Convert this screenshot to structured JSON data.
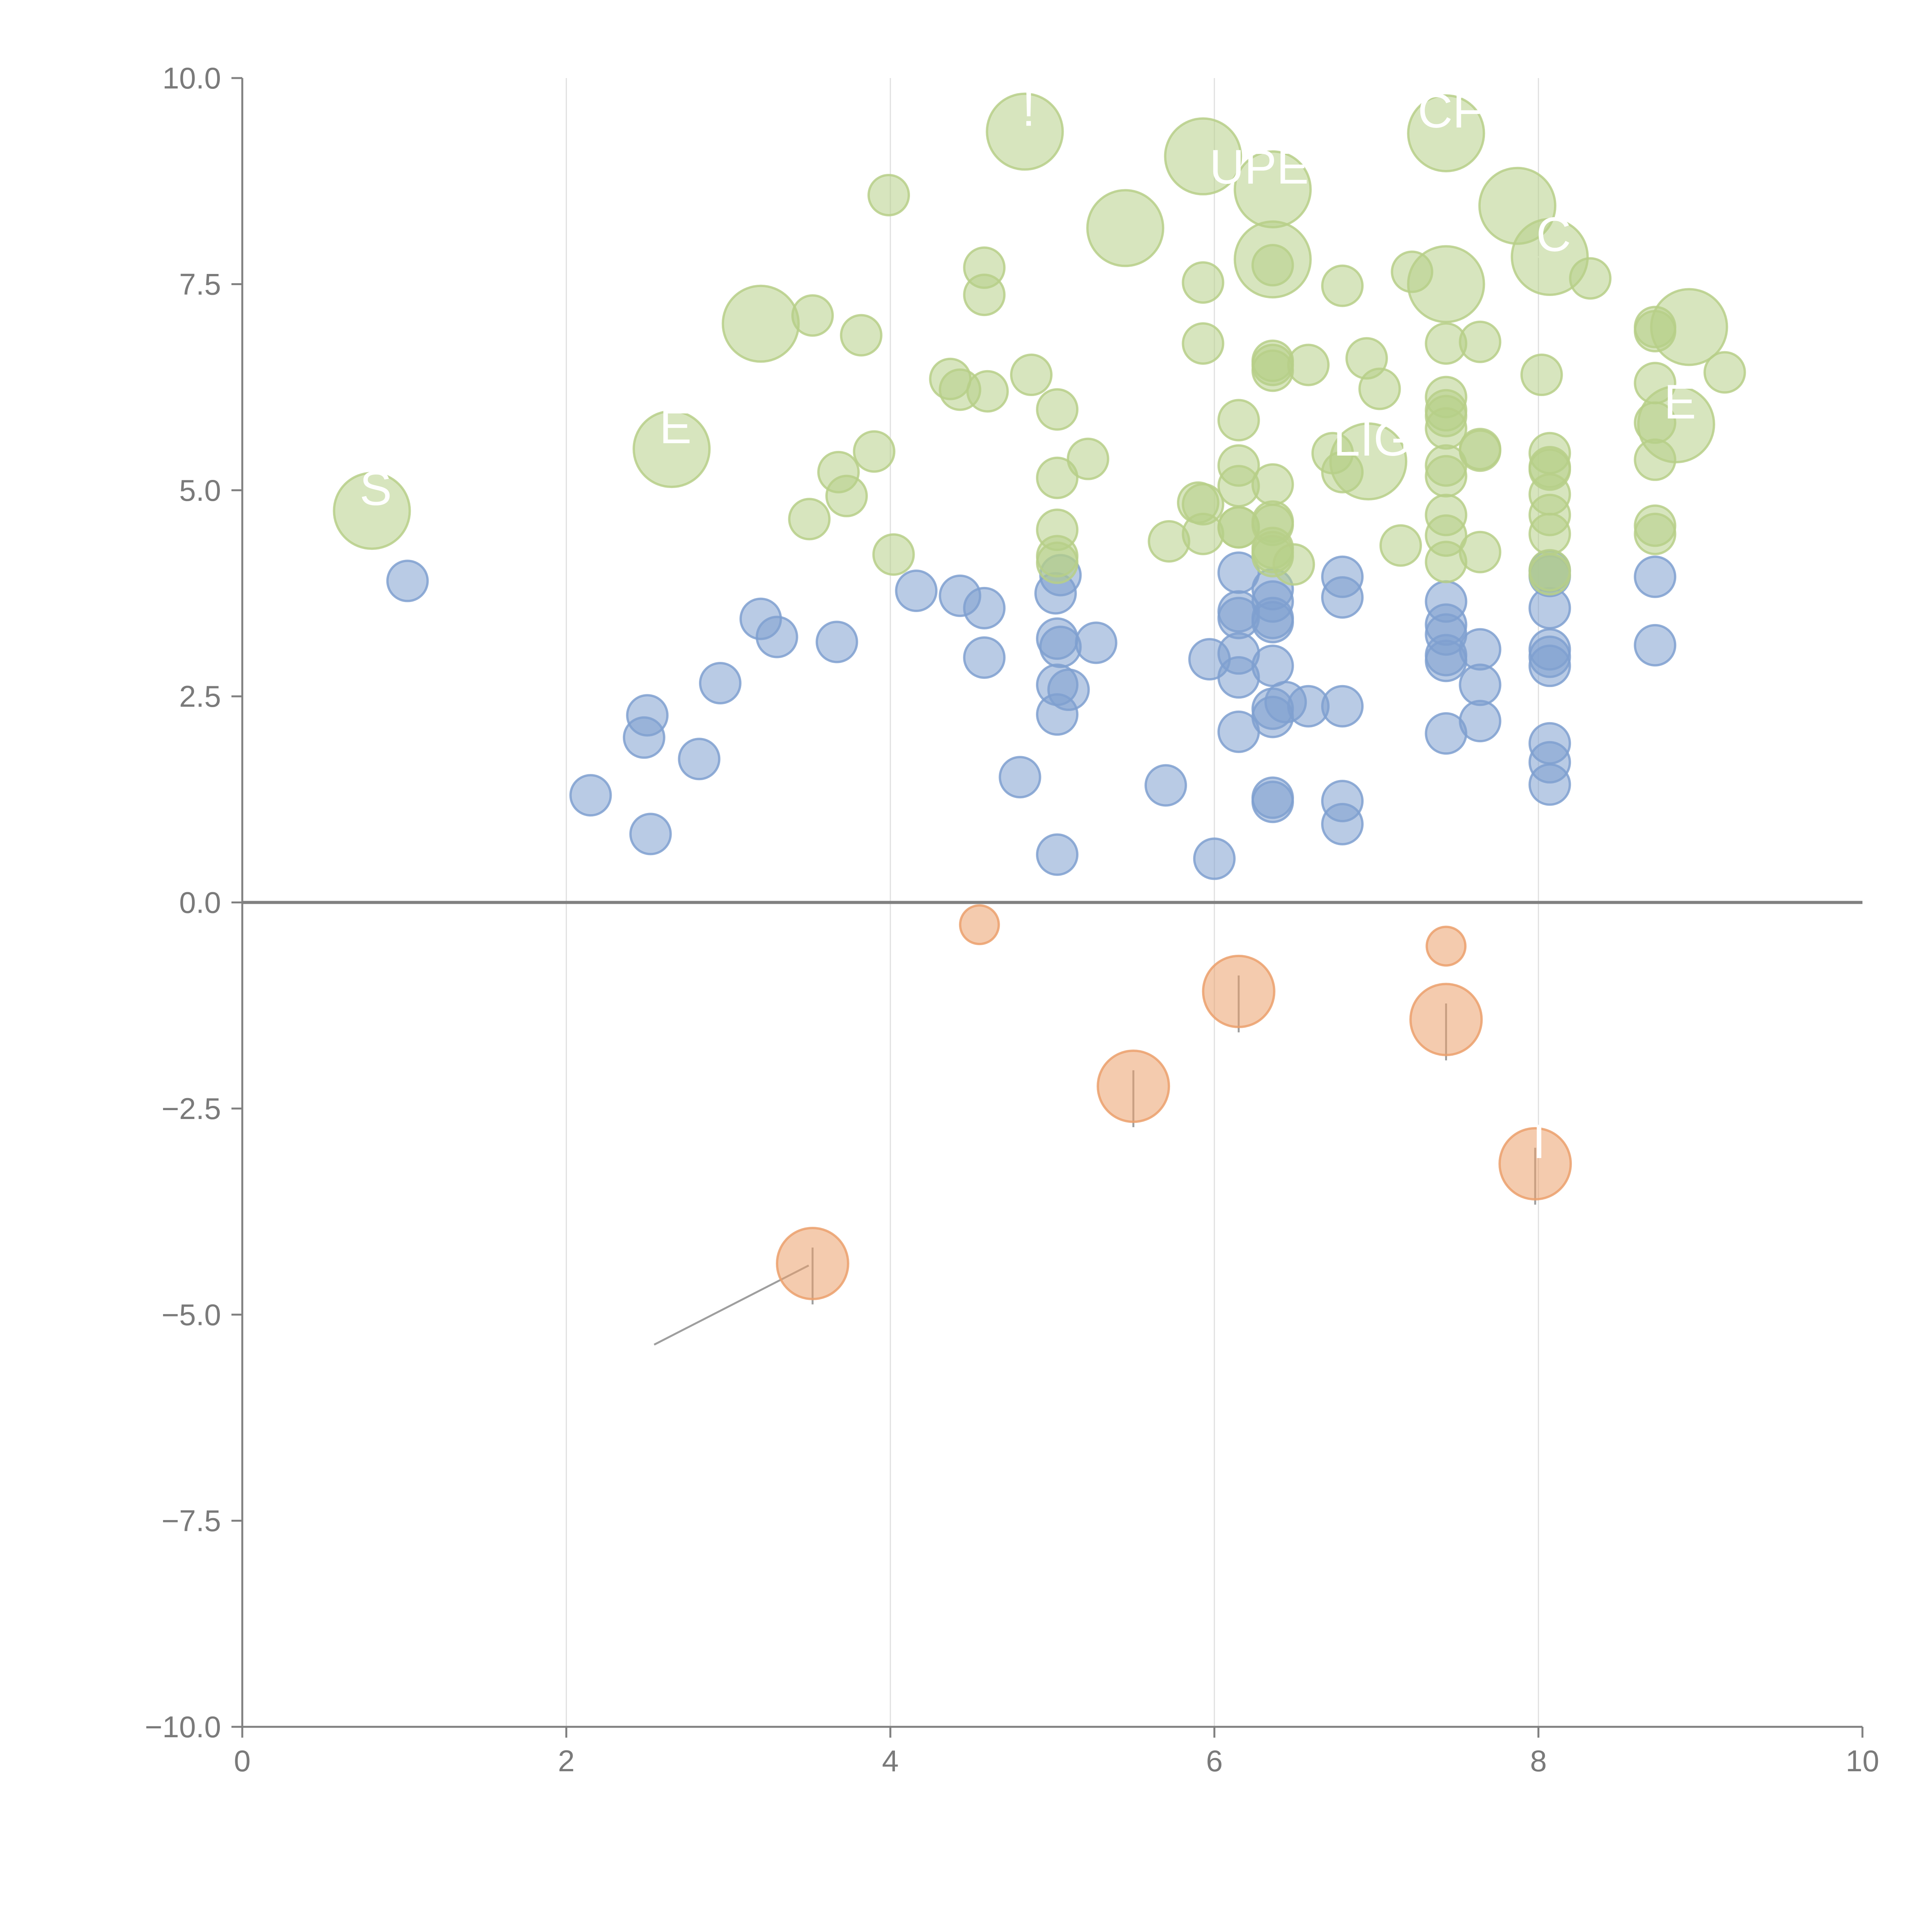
{
  "chart_data": {
    "type": "scatter",
    "title": "",
    "xlabel": "",
    "ylabel": "",
    "xlim": [
      0,
      10
    ],
    "ylim": [
      -10,
      10
    ],
    "grid": "vertical",
    "x_ticks": [
      "0",
      "2",
      "4",
      "6",
      "8",
      "10"
    ],
    "y_ticks": [
      "10.0",
      "7.5",
      "5.0",
      "2.5",
      "0.0",
      "−2.5",
      "−5.0",
      "−7.5",
      "−10.0"
    ],
    "colors": {
      "blue": "#7fa0d0",
      "green": "#b7cf88",
      "orange": "#eba06c",
      "axis": "#808080",
      "grid": "#e0e0e0",
      "leader": "#9e9e9e"
    },
    "series": [
      {
        "name": "blue",
        "points": [
          [
            1.02,
            3.9
          ],
          [
            2.15,
            1.3
          ],
          [
            2.5,
            2.27
          ],
          [
            2.48,
            2.0
          ],
          [
            2.52,
            0.83
          ],
          [
            2.82,
            1.74
          ],
          [
            2.95,
            2.66
          ],
          [
            3.2,
            3.44
          ],
          [
            3.3,
            3.22
          ],
          [
            3.67,
            3.16
          ],
          [
            4.16,
            3.78
          ],
          [
            4.43,
            3.72
          ],
          [
            4.58,
            3.57
          ],
          [
            4.58,
            2.97
          ],
          [
            4.8,
            1.52
          ],
          [
            5.02,
            3.75
          ],
          [
            5.05,
            3.97
          ],
          [
            5.03,
            3.2
          ],
          [
            5.05,
            3.1
          ],
          [
            5.03,
            2.64
          ],
          [
            5.1,
            2.58
          ],
          [
            5.03,
            2.28
          ],
          [
            5.03,
            0.58
          ],
          [
            5.27,
            3.15
          ],
          [
            5.7,
            1.42
          ],
          [
            5.97,
            2.95
          ],
          [
            6.0,
            0.53
          ],
          [
            6.15,
            4.0
          ],
          [
            6.15,
            3.53
          ],
          [
            6.15,
            3.45
          ],
          [
            6.15,
            3.02
          ],
          [
            6.15,
            2.73
          ],
          [
            6.15,
            2.07
          ],
          [
            6.36,
            3.8
          ],
          [
            6.36,
            3.65
          ],
          [
            6.36,
            3.45
          ],
          [
            6.36,
            3.4
          ],
          [
            6.36,
            2.87
          ],
          [
            6.36,
            2.35
          ],
          [
            6.36,
            2.25
          ],
          [
            6.44,
            2.43
          ],
          [
            6.58,
            2.38
          ],
          [
            6.36,
            1.27
          ],
          [
            6.36,
            1.22
          ],
          [
            6.79,
            3.95
          ],
          [
            6.79,
            3.7
          ],
          [
            6.79,
            2.38
          ],
          [
            6.79,
            1.23
          ],
          [
            6.79,
            0.95
          ],
          [
            7.43,
            3.65
          ],
          [
            7.43,
            3.37
          ],
          [
            7.43,
            3.25
          ],
          [
            7.43,
            3.0
          ],
          [
            7.43,
            2.93
          ],
          [
            7.43,
            2.05
          ],
          [
            7.64,
            3.07
          ],
          [
            7.64,
            2.64
          ],
          [
            7.64,
            2.2
          ],
          [
            8.07,
            4.02
          ],
          [
            8.07,
            3.96
          ],
          [
            8.07,
            3.57
          ],
          [
            8.07,
            3.07
          ],
          [
            8.07,
            2.98
          ],
          [
            8.07,
            2.87
          ],
          [
            8.07,
            1.93
          ],
          [
            8.07,
            1.7
          ],
          [
            8.07,
            1.43
          ],
          [
            8.72,
            3.95
          ],
          [
            8.72,
            3.12
          ]
        ]
      },
      {
        "name": "green",
        "points": [
          [
            3.5,
            4.65
          ],
          [
            3.68,
            5.22
          ],
          [
            3.73,
            4.93
          ],
          [
            3.52,
            7.12
          ],
          [
            3.82,
            6.88
          ],
          [
            3.9,
            5.47
          ],
          [
            3.99,
            8.58
          ],
          [
            4.02,
            4.22
          ],
          [
            4.37,
            6.35
          ],
          [
            4.43,
            6.22
          ],
          [
            4.58,
            7.7
          ],
          [
            4.58,
            7.37
          ],
          [
            4.6,
            6.2
          ],
          [
            4.87,
            6.4
          ],
          [
            5.03,
            5.98
          ],
          [
            5.03,
            5.15
          ],
          [
            5.03,
            4.52
          ],
          [
            5.03,
            4.2
          ],
          [
            5.03,
            4.12
          ],
          [
            5.22,
            5.38
          ],
          [
            5.72,
            4.38
          ],
          [
            5.9,
            4.85
          ],
          [
            5.93,
            4.83
          ],
          [
            5.93,
            4.47
          ],
          [
            5.93,
            7.52
          ],
          [
            5.93,
            6.78
          ],
          [
            6.15,
            5.85
          ],
          [
            6.15,
            5.3
          ],
          [
            6.15,
            5.05
          ],
          [
            6.15,
            4.55
          ],
          [
            6.15,
            4.55
          ],
          [
            6.36,
            7.73
          ],
          [
            6.36,
            6.57
          ],
          [
            6.36,
            6.52
          ],
          [
            6.36,
            6.45
          ],
          [
            6.36,
            5.07
          ],
          [
            6.36,
            4.62
          ],
          [
            6.36,
            4.58
          ],
          [
            6.36,
            4.3
          ],
          [
            6.36,
            4.25
          ],
          [
            6.36,
            4.2
          ],
          [
            6.49,
            4.1
          ],
          [
            6.58,
            6.52
          ],
          [
            6.73,
            5.45
          ],
          [
            6.79,
            7.48
          ],
          [
            6.79,
            5.22
          ],
          [
            6.94,
            6.6
          ],
          [
            7.02,
            6.23
          ],
          [
            7.15,
            4.33
          ],
          [
            7.22,
            7.65
          ],
          [
            7.43,
            6.78
          ],
          [
            7.43,
            6.13
          ],
          [
            7.43,
            5.97
          ],
          [
            7.43,
            5.9
          ],
          [
            7.43,
            5.75
          ],
          [
            7.43,
            5.3
          ],
          [
            7.43,
            5.17
          ],
          [
            7.43,
            4.7
          ],
          [
            7.43,
            4.45
          ],
          [
            7.43,
            4.13
          ],
          [
            7.64,
            6.8
          ],
          [
            7.64,
            5.5
          ],
          [
            7.64,
            5.48
          ],
          [
            7.64,
            4.25
          ],
          [
            8.02,
            6.4
          ],
          [
            8.07,
            5.45
          ],
          [
            8.07,
            5.28
          ],
          [
            8.07,
            5.25
          ],
          [
            8.07,
            4.95
          ],
          [
            8.07,
            4.7
          ],
          [
            8.07,
            4.47
          ],
          [
            8.07,
            4.03
          ],
          [
            8.07,
            3.98
          ],
          [
            8.32,
            7.57
          ],
          [
            8.72,
            6.98
          ],
          [
            8.72,
            6.93
          ],
          [
            8.72,
            6.3
          ],
          [
            8.72,
            5.82
          ],
          [
            8.72,
            5.37
          ],
          [
            8.72,
            4.57
          ],
          [
            8.72,
            4.47
          ],
          [
            9.15,
            6.43
          ]
        ]
      },
      {
        "name": "orange",
        "points": [
          [
            4.55,
            -0.27
          ],
          [
            7.43,
            -0.53
          ]
        ]
      },
      {
        "name": "green-labeled",
        "points": [
          {
            "x": 0.8,
            "y": 4.75,
            "label": "S"
          },
          {
            "x": 2.65,
            "y": 5.5,
            "label": "E"
          },
          {
            "x": 3.2,
            "y": 7.02,
            "label": ""
          },
          {
            "x": 4.83,
            "y": 9.35,
            "label": "!"
          },
          {
            "x": 5.45,
            "y": 8.18,
            "label": ""
          },
          {
            "x": 5.93,
            "y": 9.05,
            "label": ""
          },
          {
            "x": 6.36,
            "y": 8.65,
            "label": "UPER"
          },
          {
            "x": 6.36,
            "y": 7.8,
            "label": ""
          },
          {
            "x": 7.43,
            "y": 9.33,
            "label": "CF"
          },
          {
            "x": 7.43,
            "y": 7.5,
            "label": ""
          },
          {
            "x": 7.87,
            "y": 8.45,
            "label": ""
          },
          {
            "x": 8.07,
            "y": 7.83,
            "label": "C"
          },
          {
            "x": 8.93,
            "y": 6.98,
            "label": ""
          },
          {
            "x": 6.95,
            "y": 5.35,
            "label": "LIG"
          },
          {
            "x": 8.85,
            "y": 5.8,
            "label": "E"
          }
        ]
      },
      {
        "name": "orange-labeled",
        "points": [
          {
            "x": 3.52,
            "y": -4.38,
            "label": ""
          },
          {
            "x": 5.5,
            "y": -2.23,
            "label": ""
          },
          {
            "x": 6.15,
            "y": -1.08,
            "label": ""
          },
          {
            "x": 7.43,
            "y": -1.42,
            "label": ""
          },
          {
            "x": 7.98,
            "y": -3.17,
            "label": "I"
          }
        ]
      }
    ]
  }
}
